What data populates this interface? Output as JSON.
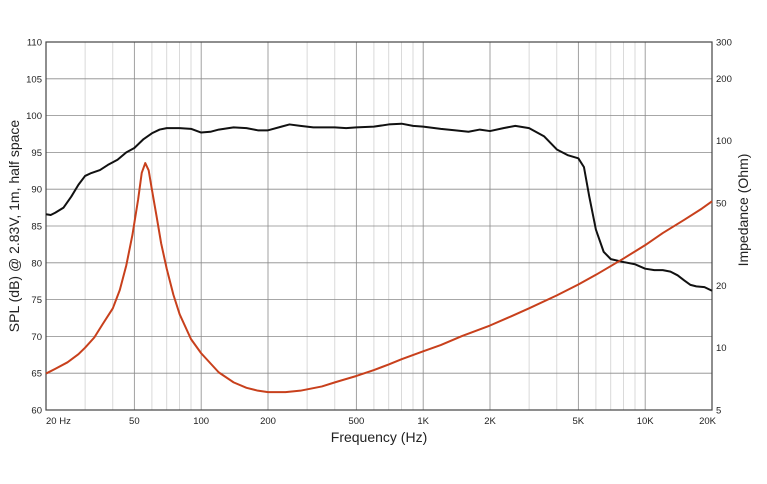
{
  "chart_data": {
    "type": "line",
    "xlabel": "Frequency (Hz)",
    "ylabel": "SPL (dB) @ 2.83V, 1m, half space",
    "y2label": "Impedance (Ohm)",
    "xscale": "log",
    "xlim": [
      20,
      20000
    ],
    "ylim": [
      60,
      110
    ],
    "y2lim": [
      5,
      300
    ],
    "y2scale": "log",
    "grid": true,
    "x_ticks": [
      {
        "value": 20,
        "label": "20  Hz"
      },
      {
        "value": 50,
        "label": "50"
      },
      {
        "value": 100,
        "label": "100"
      },
      {
        "value": 200,
        "label": "200"
      },
      {
        "value": 500,
        "label": "500"
      },
      {
        "value": 1000,
        "label": "1K"
      },
      {
        "value": 2000,
        "label": "2K"
      },
      {
        "value": 5000,
        "label": "5K"
      },
      {
        "value": 10000,
        "label": "10K"
      },
      {
        "value": 20000,
        "label": "20K"
      }
    ],
    "y_ticks": [
      {
        "value": 110,
        "label": "110"
      },
      {
        "value": 105,
        "label": "105"
      },
      {
        "value": 100,
        "label": "100"
      },
      {
        "value": 95,
        "label": "95"
      },
      {
        "value": 90,
        "label": "90"
      },
      {
        "value": 85,
        "label": "85"
      },
      {
        "value": 80,
        "label": "80"
      },
      {
        "value": 75,
        "label": "75"
      },
      {
        "value": 70,
        "label": "70"
      },
      {
        "value": 65,
        "label": "65"
      },
      {
        "value": 60,
        "label": "60"
      }
    ],
    "y2_ticks": [
      {
        "value": 300,
        "label": "300"
      },
      {
        "value": 200,
        "label": "200"
      },
      {
        "value": 100,
        "label": "100"
      },
      {
        "value": 50,
        "label": "50"
      },
      {
        "value": 20,
        "label": "20"
      },
      {
        "value": 10,
        "label": "10"
      },
      {
        "value": 5,
        "label": "5"
      }
    ],
    "series": [
      {
        "axis": "left",
        "color": "#111111",
        "points": [
          [
            20,
            86.6
          ],
          [
            21,
            86.5
          ],
          [
            22,
            86.8
          ],
          [
            24,
            87.5
          ],
          [
            26,
            89.0
          ],
          [
            28,
            90.6
          ],
          [
            30,
            91.8
          ],
          [
            32,
            92.2
          ],
          [
            35,
            92.6
          ],
          [
            38,
            93.3
          ],
          [
            42,
            94.0
          ],
          [
            46,
            95.0
          ],
          [
            50,
            95.6
          ],
          [
            55,
            96.8
          ],
          [
            60,
            97.6
          ],
          [
            65,
            98.1
          ],
          [
            70,
            98.3
          ],
          [
            80,
            98.3
          ],
          [
            90,
            98.2
          ],
          [
            100,
            97.7
          ],
          [
            110,
            97.8
          ],
          [
            120,
            98.1
          ],
          [
            140,
            98.4
          ],
          [
            160,
            98.3
          ],
          [
            180,
            98.0
          ],
          [
            200,
            98.0
          ],
          [
            230,
            98.5
          ],
          [
            250,
            98.8
          ],
          [
            280,
            98.6
          ],
          [
            320,
            98.4
          ],
          [
            400,
            98.4
          ],
          [
            450,
            98.3
          ],
          [
            500,
            98.4
          ],
          [
            600,
            98.5
          ],
          [
            700,
            98.8
          ],
          [
            800,
            98.9
          ],
          [
            900,
            98.6
          ],
          [
            1000,
            98.5
          ],
          [
            1200,
            98.2
          ],
          [
            1400,
            98.0
          ],
          [
            1600,
            97.8
          ],
          [
            1800,
            98.1
          ],
          [
            2000,
            97.9
          ],
          [
            2300,
            98.3
          ],
          [
            2600,
            98.6
          ],
          [
            3000,
            98.3
          ],
          [
            3500,
            97.2
          ],
          [
            4000,
            95.4
          ],
          [
            4500,
            94.6
          ],
          [
            5000,
            94.2
          ],
          [
            5300,
            93.0
          ],
          [
            5600,
            89.0
          ],
          [
            6000,
            84.5
          ],
          [
            6500,
            81.5
          ],
          [
            7000,
            80.5
          ],
          [
            8000,
            80.1
          ],
          [
            9000,
            79.8
          ],
          [
            10000,
            79.2
          ],
          [
            11000,
            79.0
          ],
          [
            12000,
            79.0
          ],
          [
            13000,
            78.8
          ],
          [
            14000,
            78.3
          ],
          [
            15000,
            77.6
          ],
          [
            16000,
            77.0
          ],
          [
            17000,
            76.8
          ],
          [
            18500,
            76.7
          ],
          [
            20000,
            76.2
          ]
        ]
      },
      {
        "axis": "right",
        "color": "#c8401c",
        "points": [
          [
            20,
            7.5
          ],
          [
            22,
            7.9
          ],
          [
            25,
            8.5
          ],
          [
            28,
            9.3
          ],
          [
            30,
            10.0
          ],
          [
            33,
            11.2
          ],
          [
            36,
            13.0
          ],
          [
            40,
            15.5
          ],
          [
            43,
            19.0
          ],
          [
            46,
            25.0
          ],
          [
            49,
            35.0
          ],
          [
            52,
            52.0
          ],
          [
            54,
            70.0
          ],
          [
            56,
            78.0
          ],
          [
            58,
            72.0
          ],
          [
            60,
            58.0
          ],
          [
            63,
            43.0
          ],
          [
            66,
            32.0
          ],
          [
            70,
            24.0
          ],
          [
            75,
            18.0
          ],
          [
            80,
            14.5
          ],
          [
            90,
            11.0
          ],
          [
            100,
            9.4
          ],
          [
            120,
            7.6
          ],
          [
            140,
            6.8
          ],
          [
            160,
            6.4
          ],
          [
            180,
            6.2
          ],
          [
            200,
            6.1
          ],
          [
            240,
            6.1
          ],
          [
            280,
            6.2
          ],
          [
            350,
            6.5
          ],
          [
            400,
            6.8
          ],
          [
            500,
            7.3
          ],
          [
            600,
            7.8
          ],
          [
            700,
            8.3
          ],
          [
            800,
            8.8
          ],
          [
            1000,
            9.6
          ],
          [
            1200,
            10.3
          ],
          [
            1500,
            11.4
          ],
          [
            2000,
            12.8
          ],
          [
            2500,
            14.2
          ],
          [
            3000,
            15.5
          ],
          [
            4000,
            17.9
          ],
          [
            5000,
            20.2
          ],
          [
            6000,
            22.5
          ],
          [
            7000,
            24.8
          ],
          [
            8000,
            27.0
          ],
          [
            10000,
            31.3
          ],
          [
            12000,
            35.8
          ],
          [
            15000,
            41.5
          ],
          [
            18000,
            47.0
          ],
          [
            20000,
            51.0
          ]
        ]
      }
    ]
  }
}
